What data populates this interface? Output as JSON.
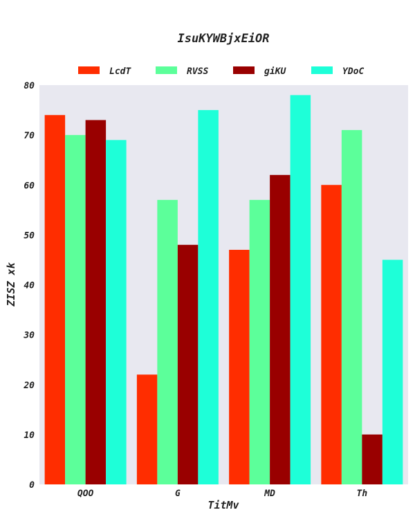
{
  "chart_data": {
    "type": "bar",
    "title": "IsuKYWBjxEiOR",
    "xlabel": "TitMv",
    "ylabel": "ZISZ xk",
    "ylim": [
      0,
      80
    ],
    "yticks": [
      0,
      10,
      20,
      30,
      40,
      50,
      60,
      70,
      80
    ],
    "categories": [
      "QOO",
      "G",
      "MD",
      "Th"
    ],
    "series": [
      {
        "name": "LcdT",
        "color": "#ff2d00",
        "values": [
          74,
          22,
          47,
          60
        ]
      },
      {
        "name": "RVSS",
        "color": "#5cff9a",
        "values": [
          70,
          57,
          57,
          71
        ]
      },
      {
        "name": "giKU",
        "color": "#990000",
        "values": [
          73,
          48,
          62,
          10
        ]
      },
      {
        "name": "YDoC",
        "color": "#1effd8",
        "values": [
          69,
          75,
          78,
          45
        ]
      }
    ],
    "grid": false,
    "legend_position": "top",
    "plot_background": "#e8e8f0"
  }
}
